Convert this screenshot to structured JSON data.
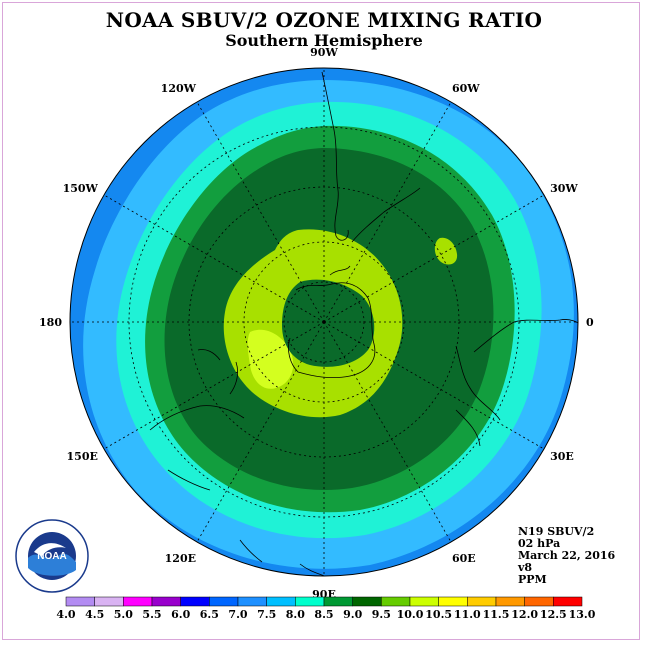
{
  "title": "NOAA SBUV/2 OZONE MIXING RATIO",
  "subtitle": "Southern Hemisphere",
  "longitude_labels": [
    {
      "text": "90W",
      "lon": -90
    },
    {
      "text": "60W",
      "lon": -60
    },
    {
      "text": "30W",
      "lon": -30
    },
    {
      "text": "0",
      "lon": 0
    },
    {
      "text": "30E",
      "lon": 30
    },
    {
      "text": "60E",
      "lon": 60
    },
    {
      "text": "90E",
      "lon": 90
    },
    {
      "text": "120E",
      "lon": 120
    },
    {
      "text": "150E",
      "lon": 150
    },
    {
      "text": "180",
      "lon": 180
    },
    {
      "text": "150W",
      "lon": -150
    },
    {
      "text": "120W",
      "lon": -120
    }
  ],
  "info": {
    "satellite": "N19 SBUV/2",
    "level": "02 hPa",
    "date": "March 22, 2016",
    "version": "v8",
    "units": "PPM"
  },
  "logo": {
    "text": "NOAA"
  },
  "colorbar": {
    "ticks": [
      "4.0",
      "4.5",
      "5.0",
      "5.5",
      "6.0",
      "6.5",
      "7.0",
      "7.5",
      "8.0",
      "8.5",
      "9.0",
      "9.5",
      "10.0",
      "10.5",
      "11.0",
      "11.5",
      "12.0",
      "12.5",
      "13.0"
    ],
    "colors": [
      "#b38cf2",
      "#d9b3f2",
      "#ff00ff",
      "#9900cc",
      "#0000ff",
      "#0066ff",
      "#1e90ff",
      "#00bfff",
      "#00ffcc",
      "#009933",
      "#006600",
      "#66cc00",
      "#ccff00",
      "#ffff00",
      "#ffcc00",
      "#ff9900",
      "#ff6600",
      "#ff0000",
      "#994d33"
    ]
  },
  "levels": {
    "outer": "#1ea0ff",
    "l7": "#33bbff",
    "l75": "#1ff2d6",
    "l8": "#129e3e",
    "l85": "#0a6a2a",
    "l9": "#a8e000",
    "l95": "#c8ff1a"
  }
}
